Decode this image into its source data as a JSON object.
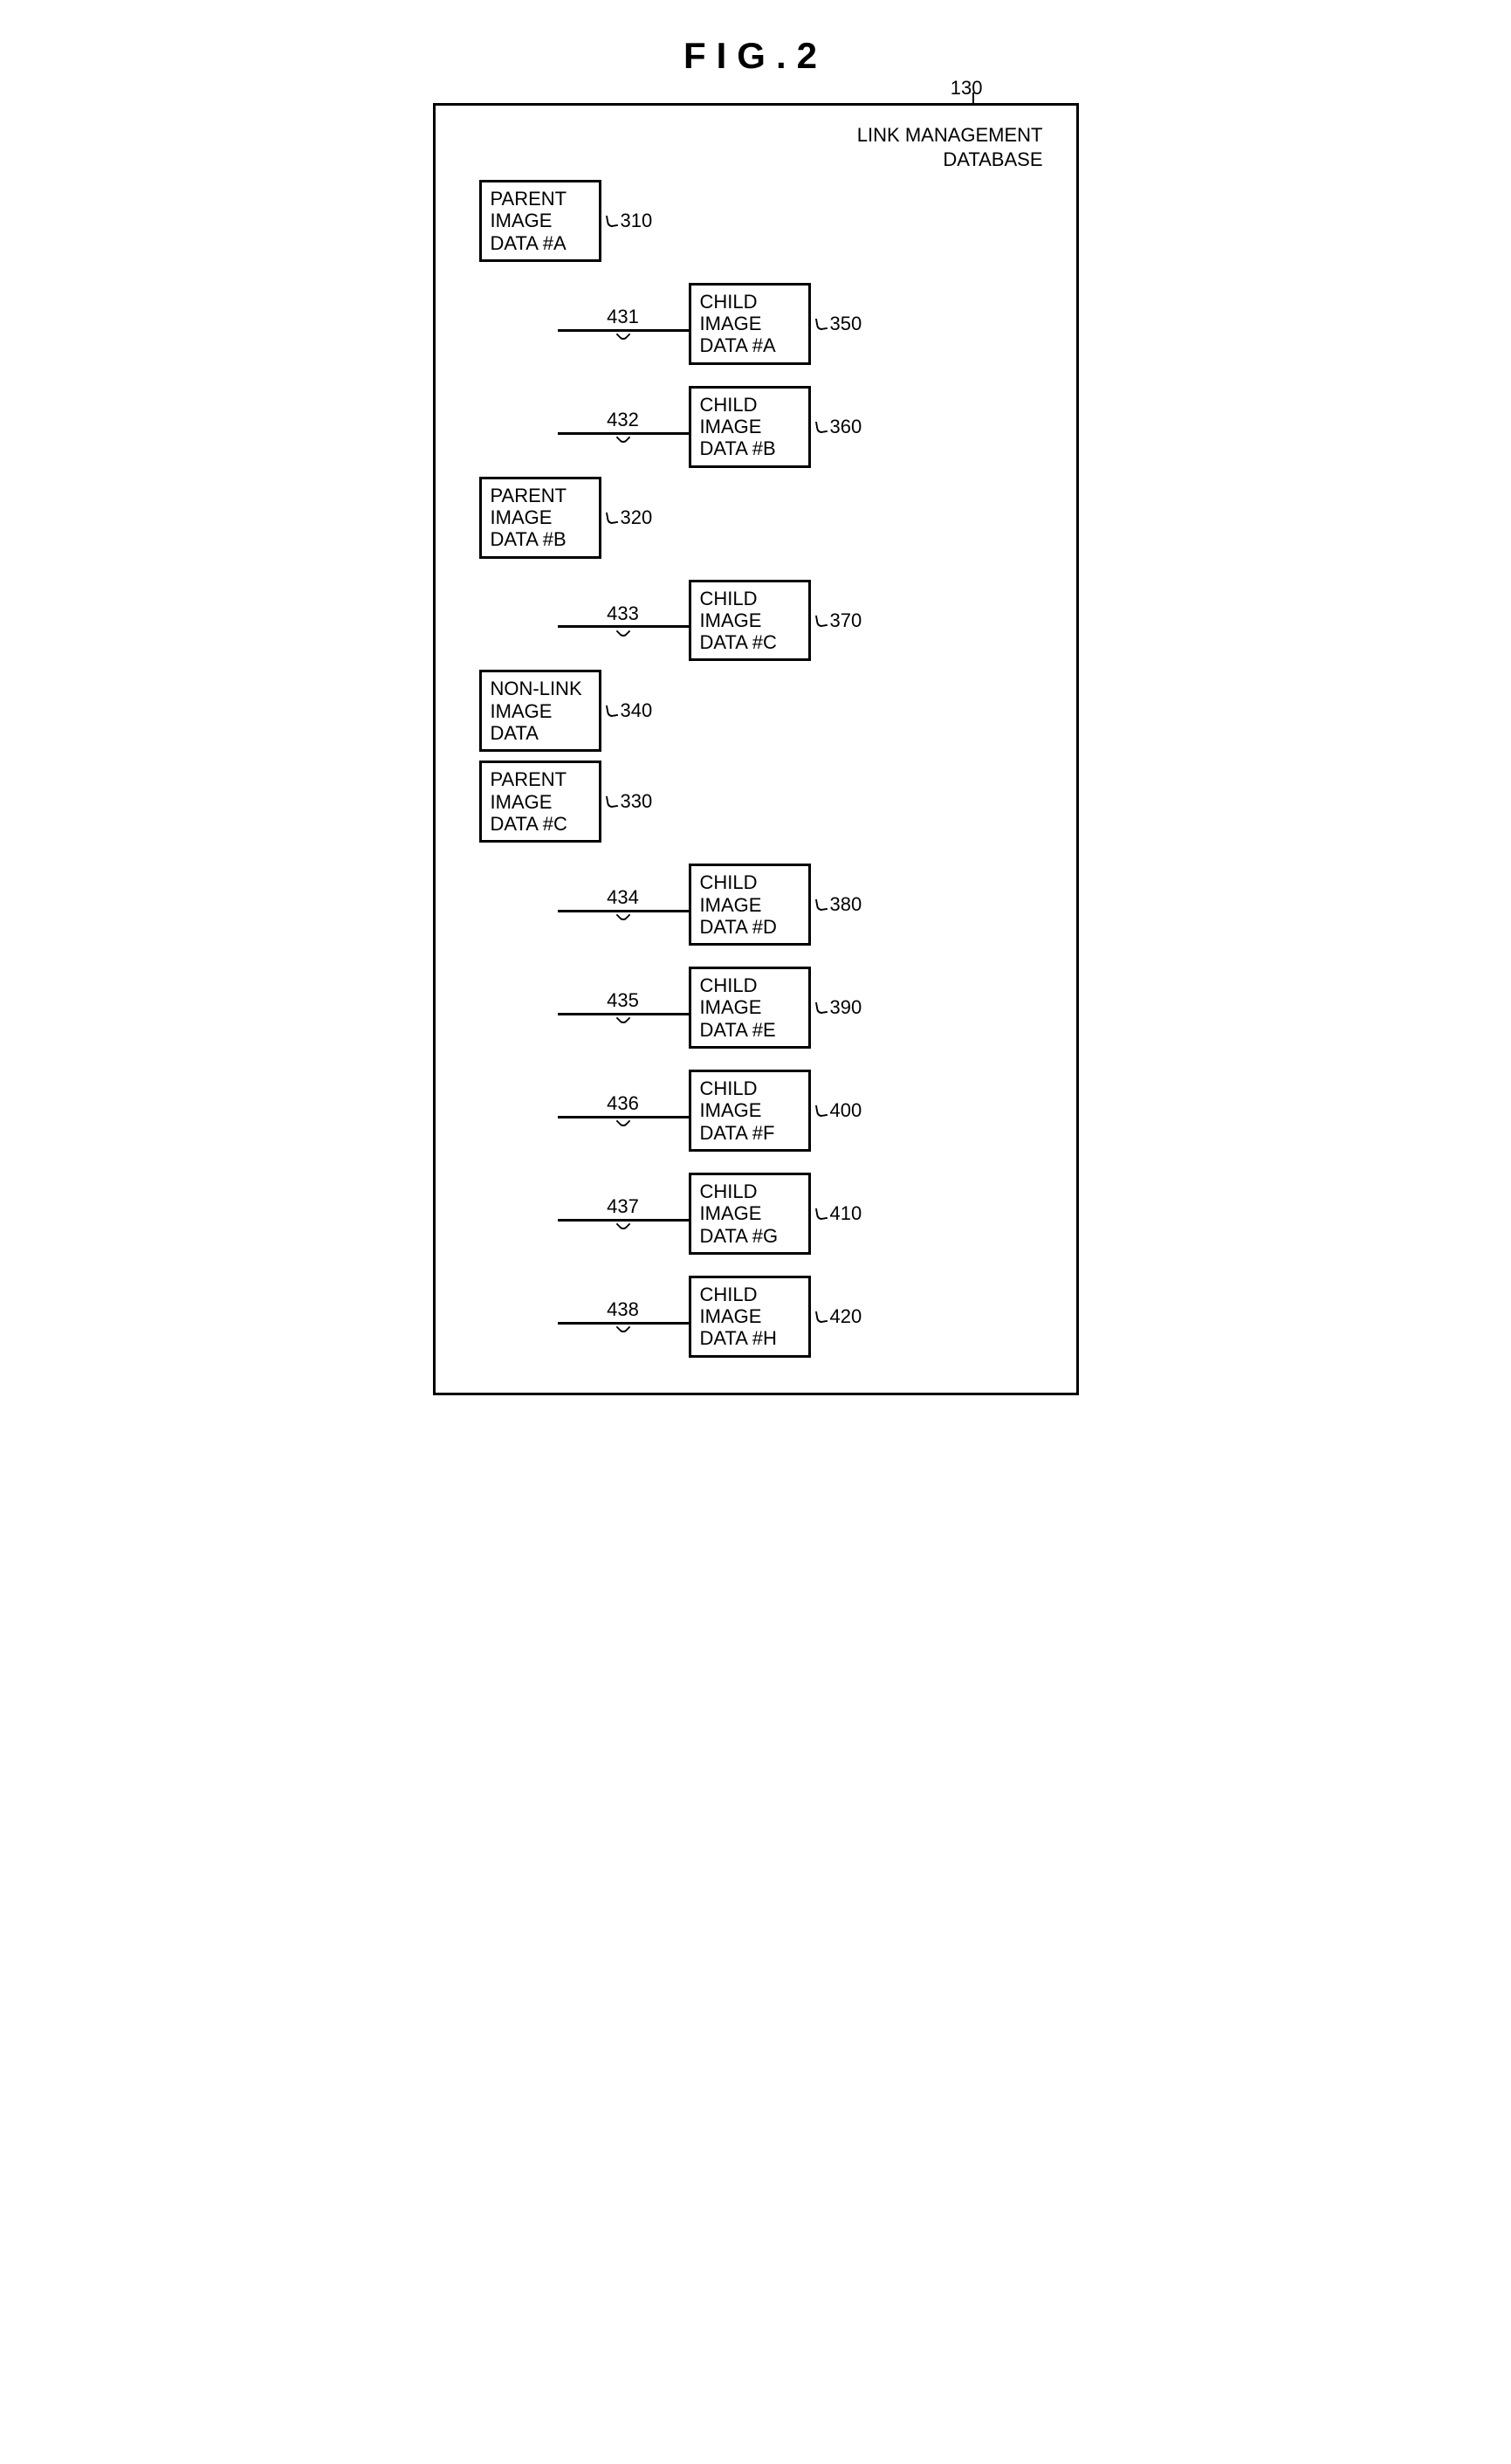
{
  "figure_title": "FIG.2",
  "database": {
    "ref": "130",
    "title_line1": "LINK MANAGEMENT",
    "title_line2": "DATABASE"
  },
  "groups": [
    {
      "parent": {
        "line1": "PARENT",
        "line2": "IMAGE",
        "line3": "DATA #A",
        "ref": "310"
      },
      "children": [
        {
          "link_ref": "431",
          "line1": "CHILD",
          "line2": "IMAGE",
          "line3": "DATA #A",
          "ref": "350"
        },
        {
          "link_ref": "432",
          "line1": "CHILD",
          "line2": "IMAGE",
          "line3": "DATA #B",
          "ref": "360"
        }
      ]
    },
    {
      "parent": {
        "line1": "PARENT",
        "line2": "IMAGE",
        "line3": "DATA #B",
        "ref": "320"
      },
      "children": [
        {
          "link_ref": "433",
          "line1": "CHILD",
          "line2": "IMAGE",
          "line3": "DATA #C",
          "ref": "370"
        }
      ]
    },
    {
      "parent": {
        "line1": "NON-LINK",
        "line2": "IMAGE",
        "line3": "DATA",
        "ref": "340"
      },
      "children": []
    },
    {
      "parent": {
        "line1": "PARENT",
        "line2": "IMAGE",
        "line3": "DATA #C",
        "ref": "330"
      },
      "children": [
        {
          "link_ref": "434",
          "line1": "CHILD",
          "line2": "IMAGE",
          "line3": "DATA #D",
          "ref": "380"
        },
        {
          "link_ref": "435",
          "line1": "CHILD",
          "line2": "IMAGE",
          "line3": "DATA #E",
          "ref": "390"
        },
        {
          "link_ref": "436",
          "line1": "CHILD",
          "line2": "IMAGE",
          "line3": "DATA #F",
          "ref": "400"
        },
        {
          "link_ref": "437",
          "line1": "CHILD",
          "line2": "IMAGE",
          "line3": "DATA #G",
          "ref": "410"
        },
        {
          "link_ref": "438",
          "line1": "CHILD",
          "line2": "IMAGE",
          "line3": "DATA #H",
          "ref": "420"
        }
      ]
    }
  ],
  "style": {
    "border_color": "#000000",
    "background_color": "#ffffff",
    "font_family": "Arial",
    "title_fontsize": 42,
    "label_fontsize": 22
  }
}
